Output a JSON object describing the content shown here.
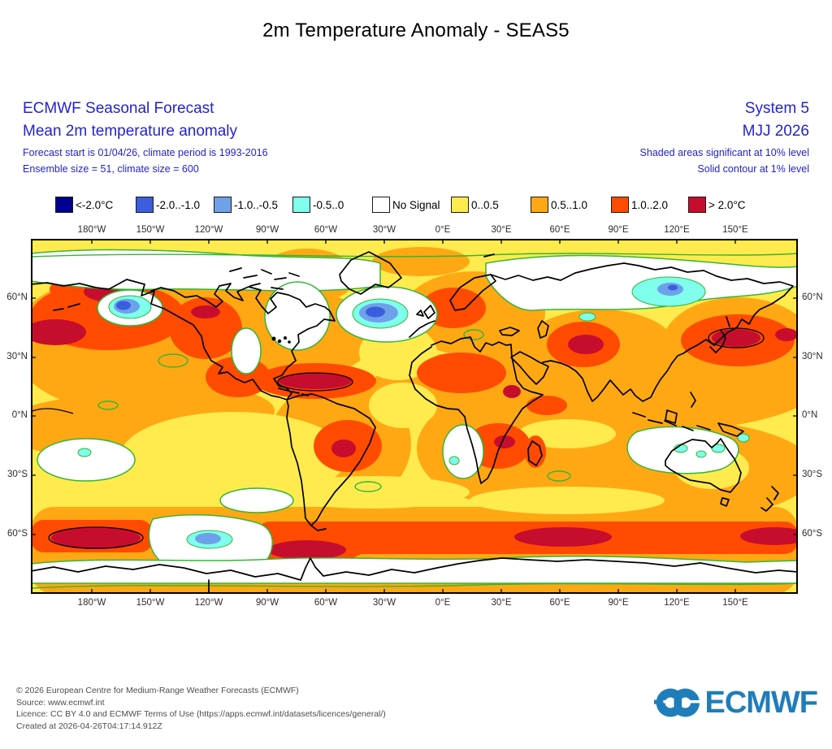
{
  "title": "2m Temperature Anomaly - SEAS5",
  "header": {
    "left": {
      "line1": "ECMWF Seasonal Forecast",
      "line2": "Mean 2m temperature anomaly",
      "line3": "Forecast start is 01/04/26, climate period is 1993-2016",
      "line4": "Ensemble size = 51, climate size = 600"
    },
    "right": {
      "line1": "System 5",
      "line2": "MJJ 2026",
      "line3": "Shaded areas significant at 10% level",
      "line4": "Solid contour at 1% level"
    },
    "text_color": "#2323CE"
  },
  "legend": {
    "items": [
      {
        "label": "<-2.0°C",
        "color": "#000090"
      },
      {
        "label": "-2.0..-1.0",
        "color": "#3B5EDF"
      },
      {
        "label": "-1.0..-0.5",
        "color": "#6FA1EA"
      },
      {
        "label": "-0.5..0",
        "color": "#7FFFEC"
      },
      {
        "label": "No Signal",
        "color": "#FFFFFF"
      },
      {
        "label": "0..0.5",
        "color": "#FFEB4D"
      },
      {
        "label": "0.5..1.0",
        "color": "#FFA813"
      },
      {
        "label": "1.0..2.0",
        "color": "#FF4B00"
      },
      {
        "label": "> 2.0°C",
        "color": "#C70D2E"
      }
    ]
  },
  "map": {
    "lon_labels": [
      "180°W",
      "150°W",
      "120°W",
      "90°W",
      "60°W",
      "30°W",
      "0°E",
      "30°E",
      "60°E",
      "90°E",
      "120°E",
      "150°E"
    ],
    "lat_labels": [
      "60°N",
      "30°N",
      "0°N",
      "30°S",
      "60°S"
    ]
  },
  "footer": {
    "lines": [
      "© 2026 European Centre for Medium-Range Weather Forecasts (ECMWF)",
      "Source: www.ecmwf.int",
      "Licence: CC BY 4.0 and ECMWF Terms of Use (https://apps.ecmwf.int/datasets/licences/general/)",
      "Created at 2026-04-26T04:17:14.912Z"
    ],
    "logo_text": "ECMWF"
  }
}
